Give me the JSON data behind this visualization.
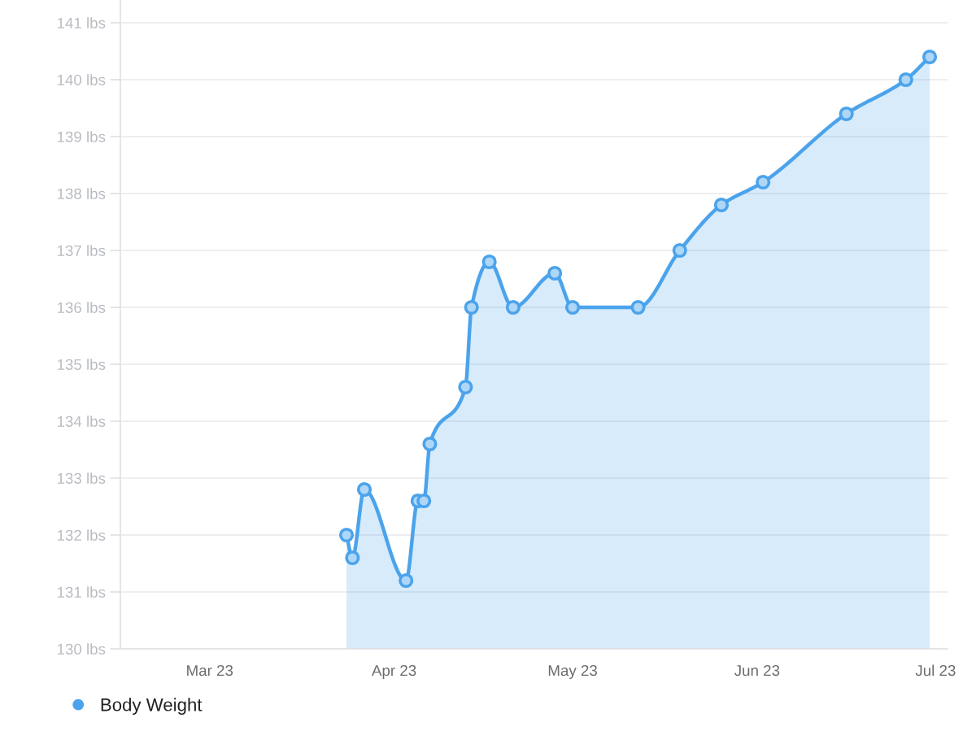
{
  "chart_data": {
    "type": "area",
    "x": [
      "2023-03-24",
      "2023-03-25",
      "2023-03-27",
      "2023-04-03",
      "2023-04-05",
      "2023-04-06",
      "2023-04-07",
      "2023-04-13",
      "2023-04-14",
      "2023-04-17",
      "2023-04-21",
      "2023-04-28",
      "2023-05-01",
      "2023-05-12",
      "2023-05-19",
      "2023-05-26",
      "2023-06-02",
      "2023-06-16",
      "2023-06-26",
      "2023-06-30"
    ],
    "series": [
      {
        "name": "Body Weight",
        "color": "#4ba3eb",
        "values": [
          132.0,
          131.6,
          132.8,
          131.2,
          132.6,
          132.6,
          133.6,
          134.6,
          136.0,
          136.8,
          136.0,
          136.6,
          136.0,
          136.0,
          137.0,
          137.8,
          138.2,
          139.4,
          140.0,
          140.4
        ]
      }
    ],
    "xlim": [
      "2023-02-14",
      "2023-07-03"
    ],
    "xticks": [
      {
        "value": "2023-03-01",
        "label": "Mar 23"
      },
      {
        "value": "2023-04-01",
        "label": "Apr 23"
      },
      {
        "value": "2023-05-01",
        "label": "May 23"
      },
      {
        "value": "2023-06-01",
        "label": "Jun 23"
      },
      {
        "value": "2023-07-01",
        "label": "Jul 23"
      }
    ],
    "ylim": [
      130,
      141.4
    ],
    "yticks": [
      {
        "value": 130,
        "label": "130 lbs"
      },
      {
        "value": 131,
        "label": "131 lbs"
      },
      {
        "value": 132,
        "label": "132 lbs"
      },
      {
        "value": 133,
        "label": "133 lbs"
      },
      {
        "value": 134,
        "label": "134 lbs"
      },
      {
        "value": 135,
        "label": "135 lbs"
      },
      {
        "value": 136,
        "label": "136 lbs"
      },
      {
        "value": 137,
        "label": "137 lbs"
      },
      {
        "value": 138,
        "label": "138 lbs"
      },
      {
        "value": 139,
        "label": "139 lbs"
      },
      {
        "value": 140,
        "label": "140 lbs"
      },
      {
        "value": 141,
        "label": "141 lbs"
      }
    ],
    "grid": "y",
    "legend": "bottom left",
    "marker": "circle",
    "line_style": "solid"
  }
}
